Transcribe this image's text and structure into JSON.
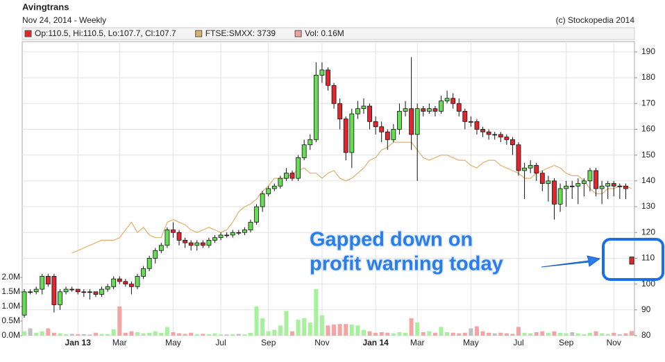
{
  "chart_data": {
    "type": "candlestick",
    "title": "Avingtrans",
    "subtitle": "Nov 24, 2014 - Weekly",
    "credit": "(c) Stockopedia 2014",
    "annotation": [
      "Gapped down on",
      "profit warning today"
    ],
    "categories": [
      null,
      null,
      null,
      null,
      null,
      null,
      null,
      null,
      null,
      "Jan 13",
      null,
      null,
      null,
      null,
      null,
      null,
      "Mar",
      null,
      null,
      null,
      null,
      null,
      null,
      null,
      null,
      "May",
      null,
      null,
      null,
      null,
      null,
      null,
      null,
      "Jul",
      null,
      null,
      null,
      null,
      null,
      null,
      null,
      "Sep",
      null,
      null,
      null,
      null,
      null,
      null,
      null,
      null,
      "Nov",
      null,
      null,
      null,
      null,
      null,
      null,
      null,
      null,
      "Jan 14",
      null,
      null,
      null,
      null,
      null,
      null,
      "Mar",
      null,
      null,
      null,
      null,
      null,
      null,
      null,
      null,
      "May",
      null,
      null,
      null,
      null,
      null,
      null,
      null,
      "Jul",
      null,
      null,
      null,
      null,
      null,
      null,
      null,
      "Sep",
      null,
      null,
      null,
      null,
      null,
      null,
      null,
      "Nov",
      null,
      null,
      null
    ],
    "ylim": [
      80,
      194
    ],
    "yticks": [
      80,
      90,
      100,
      110,
      120,
      130,
      140,
      150,
      160,
      170,
      180,
      190
    ],
    "y2lim": [
      0,
      10.1
    ],
    "y2ticks": [
      {
        "value": 0,
        "label": "0.0M"
      },
      {
        "value": 0.5,
        "label": "0.5M"
      },
      {
        "value": 1,
        "label": "1.0M"
      },
      {
        "value": 1.5,
        "label": "1.5M"
      },
      {
        "value": 2,
        "label": "2.0M"
      }
    ],
    "grid": true,
    "series": [
      {
        "name": "Op:110.5, Hi:110.5, Lo:107.7, Cl:107.7",
        "color": "#e0262e",
        "up_color": "#66dd55",
        "down_color": "#e0262e",
        "open": [
          88,
          97,
          97,
          98,
          103,
          103,
          92,
          97,
          98,
          98,
          97,
          97,
          97,
          96,
          98,
          99,
          102,
          101,
          100,
          99,
          103,
          106,
          110,
          113,
          115,
          121,
          120,
          117,
          116,
          115,
          116,
          115,
          117,
          118,
          119,
          119,
          120,
          120,
          121,
          124,
          130,
          135,
          137,
          138,
          141,
          143,
          141,
          149,
          154,
          156,
          181,
          183,
          177,
          170,
          164,
          151,
          166,
          168,
          169,
          163,
          161,
          159,
          156,
          160,
          167,
          168,
          158,
          168,
          167,
          168,
          167,
          171,
          172,
          170,
          167,
          163,
          163,
          160,
          159,
          158,
          158,
          157,
          156,
          154,
          144,
          145,
          146,
          143,
          139,
          140,
          131,
          137,
          138,
          138,
          139,
          140,
          144,
          137,
          138,
          139,
          138,
          138,
          110.5
        ],
        "high": [
          98,
          98,
          99,
          104,
          104,
          104,
          98,
          99,
          99,
          98,
          98,
          98,
          97,
          99,
          100,
          103,
          103,
          102,
          101,
          104,
          107,
          111,
          114,
          116,
          122,
          124,
          121,
          118,
          117,
          117,
          117,
          118,
          119,
          120,
          120,
          121,
          121,
          122,
          125,
          131,
          136,
          138,
          139,
          142,
          145,
          144,
          150,
          156,
          158,
          186,
          186,
          184,
          178,
          172,
          165,
          168,
          171,
          172,
          170,
          165,
          163,
          160,
          162,
          170,
          171,
          188,
          170,
          169,
          170,
          169,
          173,
          175,
          174,
          172,
          168,
          165,
          164,
          161,
          160,
          159,
          159,
          158,
          157,
          155,
          147,
          148,
          147,
          144,
          142,
          141,
          139,
          140,
          140,
          141,
          141,
          145,
          145,
          140,
          140,
          140,
          139,
          139,
          110.5
        ],
        "low": [
          87,
          96,
          96,
          96,
          99,
          89,
          90,
          96,
          97,
          96,
          95,
          94,
          95,
          95,
          97,
          98,
          100,
          99,
          96,
          98,
          102,
          105,
          108,
          112,
          114,
          118,
          115,
          114,
          113,
          113,
          114,
          114,
          116,
          117,
          118,
          118,
          119,
          119,
          120,
          123,
          128,
          134,
          136,
          137,
          140,
          140,
          140,
          148,
          152,
          155,
          178,
          175,
          168,
          160,
          148,
          145,
          164,
          166,
          160,
          158,
          155,
          152,
          155,
          158,
          165,
          152,
          140,
          165,
          166,
          165,
          166,
          170,
          168,
          165,
          160,
          161,
          158,
          157,
          156,
          156,
          155,
          154,
          150,
          142,
          133,
          143,
          140,
          136,
          132,
          125,
          128,
          130,
          133,
          131,
          134,
          136,
          134,
          131,
          133,
          134,
          133,
          133,
          107.7
        ],
        "close": [
          97,
          97,
          98,
          103,
          100,
          92,
          97,
          98,
          98,
          97,
          97,
          97,
          96,
          98,
          99,
          102,
          101,
          100,
          99,
          103,
          106,
          110,
          113,
          115,
          121,
          120,
          117,
          116,
          115,
          116,
          115,
          117,
          118,
          119,
          119,
          120,
          120,
          121,
          124,
          130,
          135,
          137,
          138,
          141,
          143,
          141,
          149,
          154,
          156,
          181,
          183,
          177,
          170,
          164,
          151,
          166,
          168,
          169,
          163,
          161,
          159,
          156,
          160,
          167,
          168,
          158,
          168,
          167,
          168,
          167,
          171,
          172,
          170,
          167,
          163,
          163,
          160,
          159,
          158,
          158,
          157,
          156,
          154,
          144,
          145,
          146,
          143,
          139,
          140,
          131,
          137,
          138,
          138,
          139,
          140,
          144,
          137,
          138,
          139,
          138,
          138,
          137,
          107.7
        ]
      },
      {
        "name": "FTSE:SMXX: 3739",
        "color": "#e0b068",
        "values": [
          null,
          null,
          null,
          null,
          null,
          null,
          null,
          null,
          112,
          113,
          114,
          115,
          116,
          117,
          117,
          117,
          118,
          121,
          124,
          120,
          122,
          119,
          118,
          118,
          124,
          125,
          124,
          123,
          121,
          120,
          121,
          122,
          121,
          120,
          121,
          124,
          128,
          130,
          131,
          133,
          136,
          138,
          141,
          141,
          141,
          143,
          144,
          145,
          143,
          143,
          141,
          143,
          144,
          141,
          140,
          141,
          143,
          145,
          148,
          149,
          152,
          153,
          155,
          155,
          155,
          155,
          152,
          149,
          148,
          149,
          150,
          150,
          149,
          148,
          148,
          146,
          145,
          147,
          148,
          148,
          146,
          145,
          144,
          143,
          141,
          141,
          143,
          144,
          145,
          146,
          145,
          143,
          142,
          142,
          140,
          137,
          135,
          135,
          137,
          137,
          138,
          138,
          137
        ]
      },
      {
        "name": "Vol: 0.16M",
        "color": "#f4a0a0",
        "axis": "y2",
        "up_color": "#a6f29c",
        "down_color": "#f6a3a3",
        "flat_color": "#c0c0c0",
        "values": [
          0.15,
          0.25,
          0.1,
          0.15,
          0.25,
          0.1,
          0.08,
          0.05,
          0.06,
          0.05,
          0.05,
          0.04,
          0.1,
          0.06,
          0.05,
          0.22,
          1.0,
          0.1,
          0.15,
          0.12,
          0.08,
          0.1,
          0.15,
          0.1,
          0.3,
          0.12,
          0.08,
          0.06,
          0.1,
          0.05,
          0.06,
          0.05,
          0.08,
          0.05,
          0.04,
          0.05,
          0.06,
          0.05,
          0.1,
          1.0,
          0.6,
          0.15,
          0.2,
          0.35,
          0.85,
          0.15,
          0.55,
          0.6,
          0.45,
          1.6,
          0.7,
          0.35,
          0.38,
          0.4,
          0.4,
          0.38,
          0.35,
          0.2,
          0.15,
          0.1,
          0.12,
          0.1,
          0.08,
          0.12,
          0.1,
          0.6,
          0.45,
          0.12,
          0.15,
          0.1,
          0.3,
          0.12,
          0.1,
          0.08,
          0.1,
          0.25,
          0.32,
          0.15,
          0.1,
          0.08,
          0.1,
          0.08,
          0.06,
          0.3,
          0.1,
          0.08,
          0.12,
          0.15,
          0.1,
          0.15,
          0.1,
          0.08,
          0.12,
          0.08,
          0.05,
          0.1,
          0.15,
          0.08,
          0.06,
          0.1,
          0.05,
          0.08,
          0.16
        ]
      }
    ]
  }
}
